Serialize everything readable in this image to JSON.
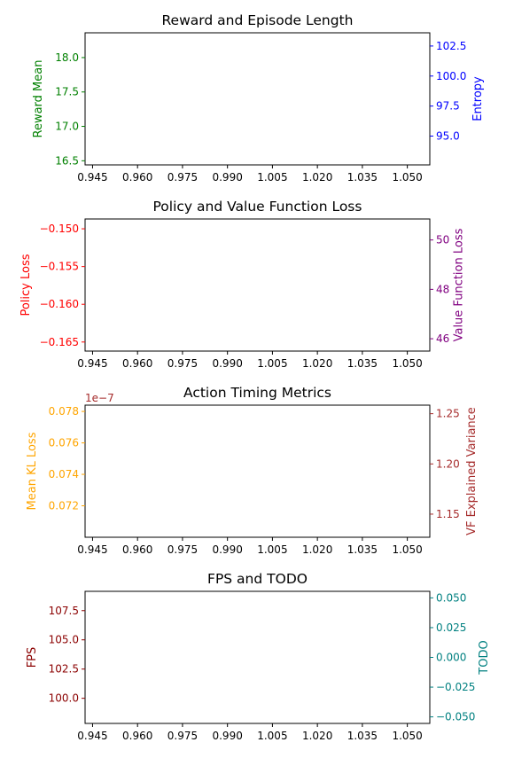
{
  "chart_data": [
    {
      "type": "line",
      "title": "Reward and Episode Length",
      "x_ticks": [
        "0.945",
        "0.960",
        "0.975",
        "0.990",
        "1.005",
        "1.020",
        "1.035",
        "1.050"
      ],
      "xlim": [
        0.9425,
        1.0575
      ],
      "left_axis": {
        "label": "Reward Mean",
        "color": "#008000",
        "ylim": [
          16.44,
          18.36
        ],
        "ticks": [
          16.5,
          17.0,
          17.5,
          18.0
        ],
        "tick_labels": [
          "16.5",
          "17.0",
          "17.5",
          "18.0"
        ]
      },
      "right_axis": {
        "label": "Entropy",
        "color": "#0000ff",
        "ylim": [
          92.6,
          103.6
        ],
        "ticks": [
          95.0,
          97.5,
          100.0,
          102.5
        ],
        "tick_labels": [
          "95.0",
          "97.5",
          "100.0",
          "102.5"
        ]
      },
      "series": []
    },
    {
      "type": "line",
      "title": "Policy and Value Function Loss",
      "x_ticks": [
        "0.945",
        "0.960",
        "0.975",
        "0.990",
        "1.005",
        "1.020",
        "1.035",
        "1.050"
      ],
      "xlim": [
        0.9425,
        1.0575
      ],
      "left_axis": {
        "label": "Policy Loss",
        "color": "#ff0000",
        "ylim": [
          -0.1662,
          -0.1487
        ],
        "ticks": [
          -0.165,
          -0.16,
          -0.155,
          -0.15
        ],
        "tick_labels": [
          "−0.165",
          "−0.160",
          "−0.155",
          "−0.150"
        ]
      },
      "right_axis": {
        "label": "Value Function Loss",
        "color": "#800080",
        "ylim": [
          45.5,
          50.85
        ],
        "ticks": [
          46,
          48,
          50
        ],
        "tick_labels": [
          "46",
          "48",
          "50"
        ]
      },
      "series": []
    },
    {
      "type": "line",
      "title": "Action Timing Metrics",
      "x_ticks": [
        "0.945",
        "0.960",
        "0.975",
        "0.990",
        "1.005",
        "1.020",
        "1.035",
        "1.050"
      ],
      "xlim": [
        0.9425,
        1.0575
      ],
      "left_axis": {
        "label": "Mean KL Loss",
        "color": "#ffa500",
        "ylim": [
          0.07,
          0.0784
        ],
        "ticks": [
          0.072,
          0.074,
          0.076,
          0.078
        ],
        "tick_labels": [
          "0.072",
          "0.074",
          "0.076",
          "0.078"
        ]
      },
      "right_axis": {
        "label": "VF Explained Variance",
        "color": "#a52a2a",
        "ylim": [
          1.127,
          1.2585
        ],
        "ticks": [
          1.15,
          1.2,
          1.25
        ],
        "tick_labels": [
          "1.15",
          "1.20",
          "1.25"
        ],
        "offset_text": "1e−7"
      },
      "series": []
    },
    {
      "type": "line",
      "title": "FPS and TODO",
      "x_ticks": [
        "0.945",
        "0.960",
        "0.975",
        "0.990",
        "1.005",
        "1.020",
        "1.035",
        "1.050"
      ],
      "xlim": [
        0.9425,
        1.0575
      ],
      "left_axis": {
        "label": "FPS",
        "color": "#8b0000",
        "ylim": [
          97.85,
          109.15
        ],
        "ticks": [
          100.0,
          102.5,
          105.0,
          107.5
        ],
        "tick_labels": [
          "100.0",
          "102.5",
          "105.0",
          "107.5"
        ]
      },
      "right_axis": {
        "label": "TODO",
        "color": "#008080",
        "ylim": [
          -0.0555,
          0.0555
        ],
        "ticks": [
          -0.05,
          -0.025,
          0.0,
          0.025,
          0.05
        ],
        "tick_labels": [
          "−0.050",
          "−0.025",
          "0.000",
          "0.025",
          "0.050"
        ]
      },
      "series": []
    }
  ]
}
